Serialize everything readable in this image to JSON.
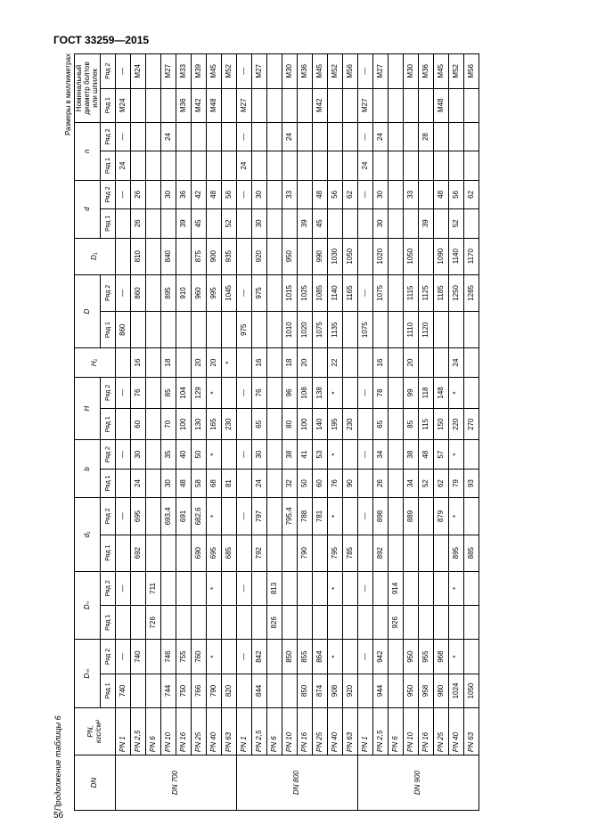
{
  "page": {
    "standard": "ГОСТ 33259—2015",
    "number": "56",
    "caption": "Продолжение таблицы 6",
    "units_note": "Размеры в миллиметрах"
  },
  "columns": {
    "dn": "DN",
    "pn": "PN,\nкгс/см²",
    "Dm": "Dₘ",
    "Dn": "Dₙ",
    "d1": "d₁",
    "b": "b",
    "H": "H",
    "H1": "H₁",
    "D": "D",
    "D1": "D₁",
    "d": "d",
    "n": "n",
    "bolt": "Номинальный диаметр болтов или шпилек",
    "row1": "Ряд 1",
    "row2": "Ряд 2"
  },
  "groups": [
    {
      "dn": "DN 700",
      "rows": [
        {
          "pn": "PN 1",
          "Dm1": "740",
          "Dm2": "—",
          "Dn1": "",
          "Dn2": "—",
          "d1_1": "",
          "d1_2": "—",
          "b1": "",
          "b2": "—",
          "H1": "",
          "H2": "—",
          "H1v": "",
          "D1": "860",
          "D2": "—",
          "D1v": "",
          "d_1": "",
          "d_2": "—",
          "n1": "24",
          "n2": "—",
          "bolt1": "М24",
          "bolt2": "—"
        },
        {
          "pn": "PN 2,5",
          "Dm1": "",
          "Dm2": "740",
          "Dn1": "",
          "Dn2": "",
          "d1_1": "692",
          "d1_2": "695",
          "b1": "24",
          "b2": "30",
          "H1": "60",
          "H2": "76",
          "H1v": "16",
          "D1": "",
          "D2": "860",
          "D1v": "810",
          "d_1": "26",
          "d_2": "26",
          "n1": "",
          "n2": "",
          "bolt1": "",
          "bolt2": "М24"
        },
        {
          "pn": "PN 6",
          "Dm1": "",
          "Dm2": "",
          "Dn1": "726",
          "Dn2": "711",
          "d1_1": "",
          "d1_2": "",
          "b1": "",
          "b2": "",
          "H1": "",
          "H2": "",
          "H1v": "",
          "D1": "",
          "D2": "",
          "D1v": "",
          "d_1": "",
          "d_2": "",
          "n1": "",
          "n2": "",
          "bolt1": "",
          "bolt2": ""
        },
        {
          "pn": "PN 10",
          "Dm1": "744",
          "Dm2": "746",
          "Dn1": "",
          "Dn2": "",
          "d1_1": "",
          "d1_2": "693,4",
          "b1": "30",
          "b2": "35",
          "H1": "70",
          "H2": "85",
          "H1v": "18",
          "D1": "",
          "D2": "895",
          "D1v": "840",
          "d_1": "",
          "d_2": "30",
          "n1": "",
          "n2": "24",
          "bolt1": "",
          "bolt2": "М27"
        },
        {
          "pn": "PN 16",
          "Dm1": "750",
          "Dm2": "755",
          "Dn1": "",
          "Dn2": "",
          "d1_1": "",
          "d1_2": "691",
          "b1": "48",
          "b2": "40",
          "H1": "100",
          "H2": "104",
          "H1v": "",
          "D1": "",
          "D2": "910",
          "D1v": "",
          "d_1": "39",
          "d_2": "36",
          "n1": "",
          "n2": "",
          "bolt1": "М36",
          "bolt2": "М33"
        },
        {
          "pn": "PN 25",
          "Dm1": "766",
          "Dm2": "760",
          "Dn1": "",
          "Dn2": "",
          "d1_1": "690",
          "d1_2": "682,6",
          "b1": "58",
          "b2": "50",
          "H1": "130",
          "H2": "129",
          "H1v": "20",
          "D1": "",
          "D2": "960",
          "D1v": "875",
          "d_1": "45",
          "d_2": "42",
          "n1": "",
          "n2": "",
          "bolt1": "М42",
          "bolt2": "М39"
        },
        {
          "pn": "PN 40",
          "Dm1": "790",
          "Dm2": "*",
          "Dn1": "",
          "Dn2": "*",
          "d1_1": "695",
          "d1_2": "*",
          "b1": "68",
          "b2": "*",
          "H1": "165",
          "H2": "*",
          "H1v": "20",
          "D1": "",
          "D2": "995",
          "D1v": "900",
          "d_1": "",
          "d_2": "48",
          "n1": "",
          "n2": "",
          "bolt1": "М48",
          "bolt2": "М45"
        },
        {
          "pn": "PN 63",
          "Dm1": "820",
          "Dm2": "",
          "Dn1": "",
          "Dn2": "",
          "d1_1": "685",
          "d1_2": "",
          "b1": "81",
          "b2": "",
          "H1": "230",
          "H2": "",
          "H1v": "*",
          "D1": "",
          "D2": "1045",
          "D1v": "935",
          "d_1": "52",
          "d_2": "56",
          "n1": "",
          "n2": "",
          "bolt1": "",
          "bolt2": "М52"
        }
      ]
    },
    {
      "dn": "DN 800",
      "rows": [
        {
          "pn": "PN 1",
          "Dm1": "",
          "Dm2": "—",
          "Dn1": "",
          "Dn2": "—",
          "d1_1": "",
          "d1_2": "—",
          "b1": "",
          "b2": "—",
          "H1": "",
          "H2": "—",
          "H1v": "",
          "D1": "975",
          "D2": "—",
          "D1v": "",
          "d_1": "",
          "d_2": "—",
          "n1": "24",
          "n2": "—",
          "bolt1": "М27",
          "bolt2": "—"
        },
        {
          "pn": "PN 2,5",
          "Dm1": "844",
          "Dm2": "842",
          "Dn1": "",
          "Dn2": "",
          "d1_1": "792",
          "d1_2": "797",
          "b1": "24",
          "b2": "30",
          "H1": "65",
          "H2": "76",
          "H1v": "16",
          "D1": "",
          "D2": "975",
          "D1v": "920",
          "d_1": "30",
          "d_2": "30",
          "n1": "",
          "n2": "",
          "bolt1": "",
          "bolt2": "М27"
        },
        {
          "pn": "PN 6",
          "Dm1": "",
          "Dm2": "",
          "Dn1": "826",
          "Dn2": "813",
          "d1_1": "",
          "d1_2": "",
          "b1": "",
          "b2": "",
          "H1": "",
          "H2": "",
          "H1v": "",
          "D1": "",
          "D2": "",
          "D1v": "",
          "d_1": "",
          "d_2": "",
          "n1": "",
          "n2": "",
          "bolt1": "",
          "bolt2": ""
        },
        {
          "pn": "PN 10",
          "Dm1": "",
          "Dm2": "850",
          "Dn1": "",
          "Dn2": "",
          "d1_1": "",
          "d1_2": "795,4",
          "b1": "32",
          "b2": "38",
          "H1": "80",
          "H2": "96",
          "H1v": "18",
          "D1": "1010",
          "D2": "1015",
          "D1v": "950",
          "d_1": "",
          "d_2": "33",
          "n1": "",
          "n2": "24",
          "bolt1": "",
          "bolt2": "М30"
        },
        {
          "pn": "PN 16",
          "Dm1": "850",
          "Dm2": "855",
          "Dn1": "",
          "Dn2": "",
          "d1_1": "790",
          "d1_2": "788",
          "b1": "50",
          "b2": "41",
          "H1": "100",
          "H2": "108",
          "H1v": "20",
          "D1": "1020",
          "D2": "1025",
          "D1v": "",
          "d_1": "39",
          "d_2": "",
          "n1": "",
          "n2": "",
          "bolt1": "",
          "bolt2": "М36"
        },
        {
          "pn": "PN 25",
          "Dm1": "874",
          "Dm2": "864",
          "Dn1": "",
          "Dn2": "",
          "d1_1": "",
          "d1_2": "781",
          "b1": "60",
          "b2": "53",
          "H1": "140",
          "H2": "138",
          "H1v": "",
          "D1": "1075",
          "D2": "1085",
          "D1v": "990",
          "d_1": "45",
          "d_2": "48",
          "n1": "",
          "n2": "",
          "bolt1": "М42",
          "bolt2": "М45"
        },
        {
          "pn": "PN 40",
          "Dm1": "908",
          "Dm2": "*",
          "Dn1": "",
          "Dn2": "*",
          "d1_1": "795",
          "d1_2": "*",
          "b1": "76",
          "b2": "*",
          "H1": "195",
          "H2": "*",
          "H1v": "22",
          "D1": "1135",
          "D2": "1140",
          "D1v": "1030",
          "d_1": "",
          "d_2": "56",
          "n1": "",
          "n2": "",
          "bolt1": "",
          "bolt2": "М52"
        },
        {
          "pn": "PN 63",
          "Dm1": "920",
          "Dm2": "",
          "Dn1": "",
          "Dn2": "",
          "d1_1": "785",
          "d1_2": "",
          "b1": "90",
          "b2": "",
          "H1": "230",
          "H2": "",
          "H1v": "",
          "D1": "",
          "D2": "1165",
          "D1v": "1050",
          "d_1": "",
          "d_2": "62",
          "n1": "",
          "n2": "",
          "bolt1": "",
          "bolt2": "М56"
        }
      ]
    },
    {
      "dn": "DN 900",
      "rows": [
        {
          "pn": "PN 1",
          "Dm1": "",
          "Dm2": "—",
          "Dn1": "",
          "Dn2": "—",
          "d1_1": "",
          "d1_2": "—",
          "b1": "",
          "b2": "—",
          "H1": "",
          "H2": "—",
          "H1v": "",
          "D1": "1075",
          "D2": "—",
          "D1v": "",
          "d_1": "",
          "d_2": "—",
          "n1": "24",
          "n2": "—",
          "bolt1": "М27",
          "bolt2": "—"
        },
        {
          "pn": "PN 2,5",
          "Dm1": "944",
          "Dm2": "942",
          "Dn1": "",
          "Dn2": "",
          "d1_1": "892",
          "d1_2": "898",
          "b1": "26",
          "b2": "34",
          "H1": "65",
          "H2": "78",
          "H1v": "16",
          "D1": "",
          "D2": "1075",
          "D1v": "1020",
          "d_1": "30",
          "d_2": "30",
          "n1": "",
          "n2": "24",
          "bolt1": "",
          "bolt2": "М27"
        },
        {
          "pn": "PN 6",
          "Dm1": "",
          "Dm2": "",
          "Dn1": "926",
          "Dn2": "914",
          "d1_1": "",
          "d1_2": "",
          "b1": "",
          "b2": "",
          "H1": "",
          "H2": "",
          "H1v": "",
          "D1": "",
          "D2": "",
          "D1v": "",
          "d_1": "",
          "d_2": "",
          "n1": "",
          "n2": "",
          "bolt1": "",
          "bolt2": ""
        },
        {
          "pn": "PN 10",
          "Dm1": "950",
          "Dm2": "950",
          "Dn1": "",
          "Dn2": "",
          "d1_1": "",
          "d1_2": "889",
          "b1": "34",
          "b2": "38",
          "H1": "85",
          "H2": "99",
          "H1v": "20",
          "D1": "1110",
          "D2": "1115",
          "D1v": "1050",
          "d_1": "",
          "d_2": "33",
          "n1": "",
          "n2": "",
          "bolt1": "",
          "bolt2": "М30"
        },
        {
          "pn": "PN 16",
          "Dm1": "958",
          "Dm2": "955",
          "Dn1": "",
          "Dn2": "",
          "d1_1": "",
          "d1_2": "",
          "b1": "52",
          "b2": "48",
          "H1": "115",
          "H2": "118",
          "H1v": "",
          "D1": "1120",
          "D2": "1125",
          "D1v": "",
          "d_1": "39",
          "d_2": "",
          "n1": "",
          "n2": "28",
          "bolt1": "",
          "bolt2": "М36"
        },
        {
          "pn": "PN 25",
          "Dm1": "980",
          "Dm2": "968",
          "Dn1": "",
          "Dn2": "",
          "d1_1": "",
          "d1_2": "879",
          "b1": "62",
          "b2": "57",
          "H1": "150",
          "H2": "148",
          "H1v": "",
          "D1": "",
          "D2": "1185",
          "D1v": "1090",
          "d_1": "",
          "d_2": "48",
          "n1": "",
          "n2": "",
          "bolt1": "М48",
          "bolt2": "М45"
        },
        {
          "pn": "PN 40",
          "Dm1": "1024",
          "Dm2": "*",
          "Dn1": "",
          "Dn2": "*",
          "d1_1": "895",
          "d1_2": "*",
          "b1": "79",
          "b2": "*",
          "H1": "220",
          "H2": "*",
          "H1v": "24",
          "D1": "",
          "D2": "1250",
          "D1v": "1140",
          "d_1": "52",
          "d_2": "56",
          "n1": "",
          "n2": "",
          "bolt1": "",
          "bolt2": "М52"
        },
        {
          "pn": "PN 63",
          "Dm1": "1050",
          "Dm2": "",
          "Dn1": "",
          "Dn2": "",
          "d1_1": "885",
          "d1_2": "",
          "b1": "93",
          "b2": "",
          "H1": "270",
          "H2": "",
          "H1v": "",
          "D1": "",
          "D2": "1285",
          "D1v": "1170",
          "d_1": "",
          "d_2": "62",
          "n1": "",
          "n2": "",
          "bolt1": "",
          "bolt2": "М56"
        }
      ]
    }
  ]
}
